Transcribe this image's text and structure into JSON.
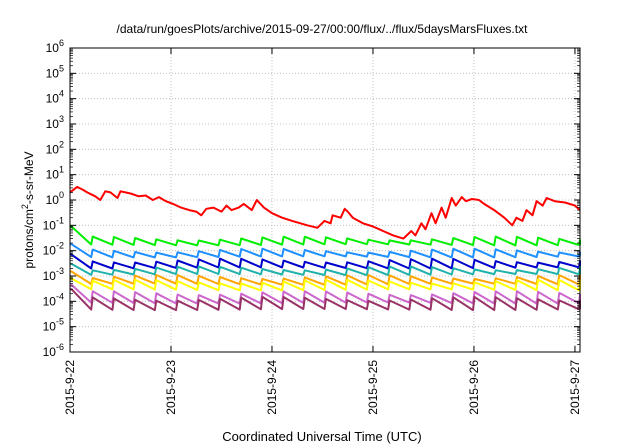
{
  "chart_data": {
    "type": "line",
    "title": "/data/run/goesPlots/archive/2015-09-27/00:00/flux/../flux/5daysMarsFluxes.txt",
    "xlabel": "Coordinated Universal Time (UTC)",
    "ylabel_parts": [
      "protons/cm",
      "2",
      "-s-sr-MeV"
    ],
    "x_tick_labels": [
      "2015-9-22",
      "2015-9-23",
      "2015-9-24",
      "2015-9-25",
      "2015-9-26",
      "2015-9-27"
    ],
    "x_range_days": [
      0,
      5.05
    ],
    "y_scale": "log",
    "ylim": [
      1e-06,
      1000000.0
    ],
    "y_tick_exponents": [
      -6,
      -5,
      -4,
      -3,
      -2,
      -1,
      0,
      1,
      2,
      3,
      4,
      5,
      6
    ],
    "grid": true,
    "x": [
      0.0,
      0.07,
      0.13,
      0.17,
      0.25,
      0.3,
      0.35,
      0.4,
      0.47,
      0.5,
      0.6,
      0.68,
      0.75,
      0.82,
      0.88,
      0.95,
      1.02,
      1.1,
      1.18,
      1.25,
      1.3,
      1.35,
      1.42,
      1.5,
      1.55,
      1.6,
      1.67,
      1.72,
      1.8,
      1.85,
      1.92,
      2.0,
      2.1,
      2.2,
      2.35,
      2.45,
      2.52,
      2.58,
      2.6,
      2.68,
      2.72,
      2.75,
      2.8,
      2.9,
      3.0,
      3.1,
      3.2,
      3.3,
      3.38,
      3.42,
      3.48,
      3.52,
      3.58,
      3.62,
      3.68,
      3.72,
      3.78,
      3.82,
      3.88,
      3.92,
      3.98,
      4.05,
      4.1,
      4.2,
      4.3,
      4.38,
      4.42,
      4.48,
      4.52,
      4.58,
      4.62,
      4.68,
      4.72,
      4.8,
      4.9,
      5.0,
      5.05
    ],
    "series": [
      {
        "color": "#ff0000",
        "values": [
          2.0,
          3.3,
          2.5,
          2.0,
          1.4,
          1.0,
          2.2,
          2.0,
          1.2,
          2.2,
          1.8,
          1.4,
          1.5,
          1.0,
          1.3,
          0.9,
          0.7,
          0.5,
          0.4,
          0.35,
          0.25,
          0.45,
          0.5,
          0.35,
          0.6,
          0.4,
          0.5,
          0.7,
          0.4,
          1.0,
          0.5,
          0.3,
          0.2,
          0.15,
          0.1,
          0.08,
          0.15,
          0.12,
          0.25,
          0.2,
          0.45,
          0.35,
          0.2,
          0.12,
          0.09,
          0.06,
          0.04,
          0.03,
          0.06,
          0.04,
          0.12,
          0.07,
          0.3,
          0.12,
          0.5,
          0.2,
          1.2,
          0.6,
          1.3,
          0.9,
          1.1,
          1.0,
          0.7,
          0.4,
          0.2,
          0.1,
          0.2,
          0.15,
          0.4,
          0.25,
          0.9,
          0.6,
          1.2,
          0.9,
          0.8,
          0.6,
          0.4
        ]
      },
      {
        "color": "#00ee00",
        "base": 0.018,
        "start": 0.09,
        "amp": 2.0
      },
      {
        "color": "#1e90ff",
        "base": 0.006,
        "start": 0.018,
        "amp": 2.0
      },
      {
        "color": "#0000cc",
        "base": 0.0022,
        "start": 0.007,
        "amp": 2.2
      },
      {
        "color": "#20b2aa",
        "base": 0.0012,
        "start": 0.003,
        "amp": 2.0
      },
      {
        "color": "#ffa500",
        "base": 0.0005,
        "start": 0.0015,
        "amp": 2.2
      },
      {
        "color": "#ffff00",
        "base": 0.0003,
        "start": 0.0008,
        "amp": 2.4
      },
      {
        "color": "#cc66cc",
        "base": 9e-05,
        "start": 0.00045,
        "amp": 2.8
      },
      {
        "color": "#993366",
        "base": 5e-05,
        "start": 0.0003,
        "amp": 3.0
      }
    ]
  }
}
